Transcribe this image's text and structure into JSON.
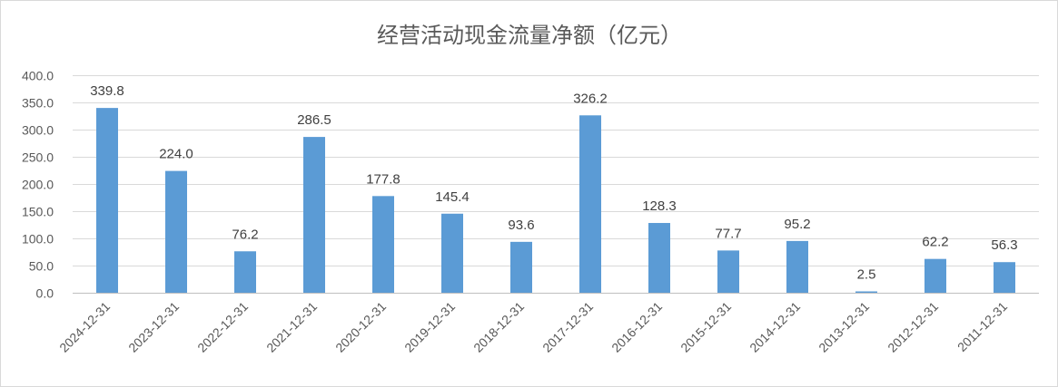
{
  "chart_data": {
    "type": "bar",
    "title": "经营活动现金流量净额（亿元）",
    "xlabel": "",
    "ylabel": "",
    "categories": [
      "2024-12-31",
      "2023-12-31",
      "2022-12-31",
      "2021-12-31",
      "2020-12-31",
      "2019-12-31",
      "2018-12-31",
      "2017-12-31",
      "2016-12-31",
      "2015-12-31",
      "2014-12-31",
      "2013-12-31",
      "2012-12-31",
      "2011-12-31"
    ],
    "values": [
      339.8,
      224.0,
      76.2,
      286.5,
      177.8,
      145.4,
      93.6,
      326.2,
      128.3,
      77.7,
      95.2,
      2.5,
      62.2,
      56.3
    ],
    "data_labels": [
      "339.8",
      "224.0",
      "76.2",
      "286.5",
      "177.8",
      "145.4",
      "93.6",
      "326.2",
      "128.3",
      "77.7",
      "95.2",
      "2.5",
      "62.2",
      "56.3"
    ],
    "ylim": [
      0,
      400
    ],
    "yticks": [
      "0.0",
      "50.0",
      "100.0",
      "150.0",
      "200.0",
      "250.0",
      "300.0",
      "350.0",
      "400.0"
    ],
    "grid": true,
    "legend": "none",
    "bar_color": "#5b9bd5"
  }
}
